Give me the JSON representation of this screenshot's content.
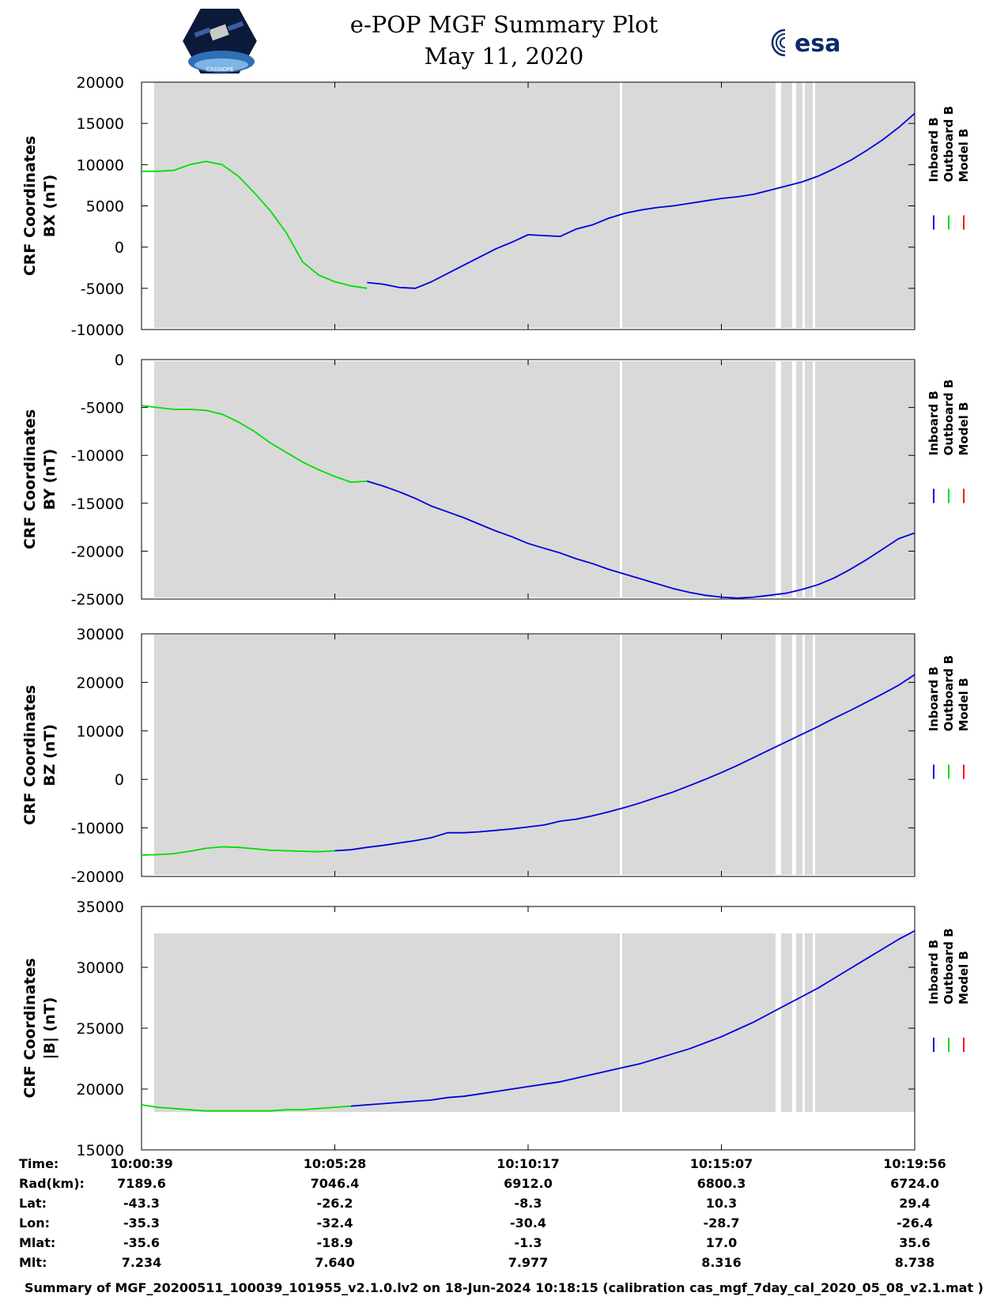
{
  "header": {
    "title_line1": "e-POP MGF Summary Plot",
    "title_line2": "May 11, 2020",
    "left_logo": "cassiope-mission-logo",
    "left_logo_text": "CASSIOPE",
    "right_logo_text": "esa"
  },
  "colors": {
    "inboard": "#0000dd",
    "outboard": "#00dd00",
    "model": "#ff0000",
    "shade": "#d9d9d9"
  },
  "chart_data": [
    {
      "type": "line",
      "ylabel_line1": "CRF Coordinates",
      "ylabel_line2": "BX (nT)",
      "ylim": [
        -10000,
        20000
      ],
      "yticks": [
        20000,
        15000,
        10000,
        5000,
        0,
        -5000,
        -10000
      ],
      "ytick_labels": [
        "20000",
        "15000",
        "10000",
        "5000",
        "0",
        "-5000",
        "-10000"
      ],
      "legend": [
        "Inboard B",
        "Outboard B",
        "Model B"
      ],
      "series": [
        {
          "name": "Outboard B",
          "color_key": "outboard",
          "x": [
            0,
            0.5,
            1,
            1.5,
            2,
            2.5,
            3,
            3.5,
            4,
            4.5,
            5,
            5.5,
            6,
            6.5,
            7
          ],
          "values": [
            9200,
            9200,
            9300,
            10000,
            10400,
            10000,
            8600,
            6600,
            4400,
            1700,
            -1800,
            -3400,
            -4200,
            -4700,
            -5000
          ]
        },
        {
          "name": "Inboard B",
          "color_key": "inboard",
          "x": [
            7,
            7.5,
            8,
            8.5,
            9,
            9.5,
            10,
            10.5,
            11,
            11.5,
            12,
            12.5,
            13,
            13.5,
            14,
            14.5,
            15,
            15.5,
            16,
            16.5,
            17,
            17.5,
            18,
            18.5,
            19,
            19.5,
            20,
            20.5,
            21,
            21.5,
            22,
            22.5,
            23,
            23.5,
            24
          ],
          "values": [
            -4300,
            -4500,
            -4900,
            -5000,
            -4200,
            -3200,
            -2200,
            -1200,
            -200,
            600,
            1500,
            1400,
            1300,
            2200,
            2700,
            3500,
            4100,
            4500,
            4800,
            5000,
            5300,
            5600,
            5900,
            6100,
            6400,
            6900,
            7400,
            7900,
            8600,
            9500,
            10500,
            11700,
            13000,
            14500,
            16200
          ]
        }
      ]
    },
    {
      "type": "line",
      "ylabel_line1": "CRF Coordinates",
      "ylabel_line2": "BY (nT)",
      "ylim": [
        -25000,
        0
      ],
      "yticks": [
        0,
        -5000,
        -10000,
        -15000,
        -20000,
        -25000
      ],
      "ytick_labels": [
        "0",
        "-5000",
        "-10000",
        "-15000",
        "-20000",
        "-25000"
      ],
      "legend": [
        "Inboard B",
        "Outboard B",
        "Model B"
      ],
      "series": [
        {
          "name": "Outboard B",
          "color_key": "outboard",
          "x": [
            0,
            0.5,
            1,
            1.5,
            2,
            2.5,
            3,
            3.5,
            4,
            4.5,
            5,
            5.5,
            6,
            6.5,
            7
          ],
          "values": [
            -4800,
            -5000,
            -5200,
            -5200,
            -5300,
            -5700,
            -6500,
            -7500,
            -8700,
            -9700,
            -10700,
            -11500,
            -12200,
            -12800,
            -12700
          ]
        },
        {
          "name": "Inboard B",
          "color_key": "inboard",
          "x": [
            7,
            7.5,
            8,
            8.5,
            9,
            9.5,
            10,
            10.5,
            11,
            11.5,
            12,
            12.5,
            13,
            13.5,
            14,
            14.5,
            15,
            15.5,
            16,
            16.5,
            17,
            17.5,
            18,
            18.5,
            19,
            19.5,
            20,
            20.5,
            21,
            21.5,
            22,
            22.5,
            23,
            23.5,
            24
          ],
          "values": [
            -12700,
            -13200,
            -13800,
            -14500,
            -15300,
            -15900,
            -16500,
            -17200,
            -17900,
            -18500,
            -19200,
            -19700,
            -20200,
            -20800,
            -21300,
            -21900,
            -22400,
            -22900,
            -23400,
            -23900,
            -24300,
            -24600,
            -24800,
            -24900,
            -24800,
            -24600,
            -24400,
            -24000,
            -23500,
            -22800,
            -21900,
            -20900,
            -19800,
            -18700,
            -18100
          ]
        }
      ]
    },
    {
      "type": "line",
      "ylabel_line1": "CRF Coordinates",
      "ylabel_line2": "BZ (nT)",
      "ylim": [
        -20000,
        30000
      ],
      "yticks": [
        30000,
        20000,
        10000,
        0,
        -10000,
        -20000
      ],
      "ytick_labels": [
        "30000",
        "20000",
        "10000",
        "0",
        "-10000",
        "-20000"
      ],
      "legend": [
        "Inboard B",
        "Outboard B",
        "Model B"
      ],
      "series": [
        {
          "name": "Outboard B",
          "color_key": "outboard",
          "x": [
            0,
            0.5,
            1,
            1.5,
            2,
            2.5,
            3,
            3.5,
            4,
            4.5,
            5,
            5.5,
            6
          ],
          "values": [
            -15600,
            -15500,
            -15300,
            -14800,
            -14200,
            -13900,
            -14000,
            -14300,
            -14600,
            -14700,
            -14800,
            -14900,
            -14700
          ]
        },
        {
          "name": "Inboard B",
          "color_key": "inboard",
          "x": [
            6,
            6.5,
            7,
            7.5,
            8,
            8.5,
            9,
            9.5,
            10,
            10.5,
            11,
            11.5,
            12,
            12.5,
            13,
            13.5,
            14,
            14.5,
            15,
            15.5,
            16,
            16.5,
            17,
            17.5,
            18,
            18.5,
            19,
            19.5,
            20,
            20.5,
            21,
            21.5,
            22,
            22.5,
            23,
            23.5,
            24
          ],
          "values": [
            -14700,
            -14500,
            -14000,
            -13600,
            -13100,
            -12600,
            -12000,
            -11000,
            -11000,
            -10800,
            -10500,
            -10200,
            -9800,
            -9400,
            -8600,
            -8200,
            -7500,
            -6700,
            -5800,
            -4800,
            -3700,
            -2600,
            -1300,
            0,
            1400,
            2900,
            4500,
            6100,
            7700,
            9300,
            10900,
            12600,
            14200,
            15900,
            17600,
            19400,
            21600
          ]
        }
      ]
    },
    {
      "type": "line",
      "ylabel_line1": "CRF Coordinates",
      "ylabel_line2": "|B| (nT)",
      "ylim": [
        15000,
        35000
      ],
      "yticks": [
        35000,
        30000,
        25000,
        20000,
        15000
      ],
      "ytick_labels": [
        "35000",
        "30000",
        "25000",
        "20000",
        "15000"
      ],
      "legend": [
        "Inboard B",
        "Outboard B",
        "Model B"
      ],
      "series": [
        {
          "name": "Outboard B",
          "color_key": "outboard",
          "x": [
            0,
            0.5,
            1,
            1.5,
            2,
            2.5,
            3,
            3.5,
            4,
            4.5,
            5,
            5.5,
            6,
            6.5
          ],
          "values": [
            18700,
            18500,
            18400,
            18300,
            18200,
            18200,
            18200,
            18200,
            18200,
            18300,
            18300,
            18400,
            18500,
            18600
          ]
        },
        {
          "name": "Inboard B",
          "color_key": "inboard",
          "x": [
            6.5,
            7,
            7.5,
            8,
            8.5,
            9,
            9.5,
            10,
            10.5,
            11,
            11.5,
            12,
            12.5,
            13,
            13.5,
            14,
            14.5,
            15,
            15.5,
            16,
            16.5,
            17,
            17.5,
            18,
            18.5,
            19,
            19.5,
            20,
            20.5,
            21,
            21.5,
            22,
            22.5,
            23,
            23.5,
            24
          ],
          "values": [
            18600,
            18700,
            18800,
            18900,
            19000,
            19100,
            19300,
            19400,
            19600,
            19800,
            20000,
            20200,
            20400,
            20600,
            20900,
            21200,
            21500,
            21800,
            22100,
            22500,
            22900,
            23300,
            23800,
            24300,
            24900,
            25500,
            26200,
            26900,
            27600,
            28300,
            29100,
            29900,
            30700,
            31500,
            32300,
            33000
          ]
        }
      ]
    }
  ],
  "axes": {
    "x_range_minutes": [
      0,
      24
    ]
  },
  "info_table": {
    "row_labels": [
      "Time:",
      "Rad(km):",
      "Lat:",
      "Lon:",
      "Mlat:",
      "Mlt:"
    ],
    "columns": [
      {
        "x_minute": 0,
        "values": [
          "10:00:39",
          "7189.6",
          "-43.3",
          "-35.3",
          "-35.6",
          "7.234"
        ]
      },
      {
        "x_minute": 6,
        "values": [
          "10:05:28",
          "7046.4",
          "-26.2",
          "-32.4",
          "-18.9",
          "7.640"
        ]
      },
      {
        "x_minute": 12,
        "values": [
          "10:10:17",
          "6912.0",
          "-8.3",
          "-30.4",
          "-1.3",
          "7.977"
        ]
      },
      {
        "x_minute": 18,
        "values": [
          "10:15:07",
          "6800.3",
          "10.3",
          "-28.7",
          "17.0",
          "8.316"
        ]
      },
      {
        "x_minute": 24,
        "values": [
          "10:19:56",
          "6724.0",
          "29.4",
          "-26.4",
          "35.6",
          "8.738"
        ]
      }
    ]
  },
  "footer": {
    "text": "Summary of MGF_20200511_100039_101955_v2.1.0.lv2 on 18-Jun-2024 10:18:15 (calibration cas_mgf_7day_cal_2020_05_08_v2.1.mat )"
  }
}
